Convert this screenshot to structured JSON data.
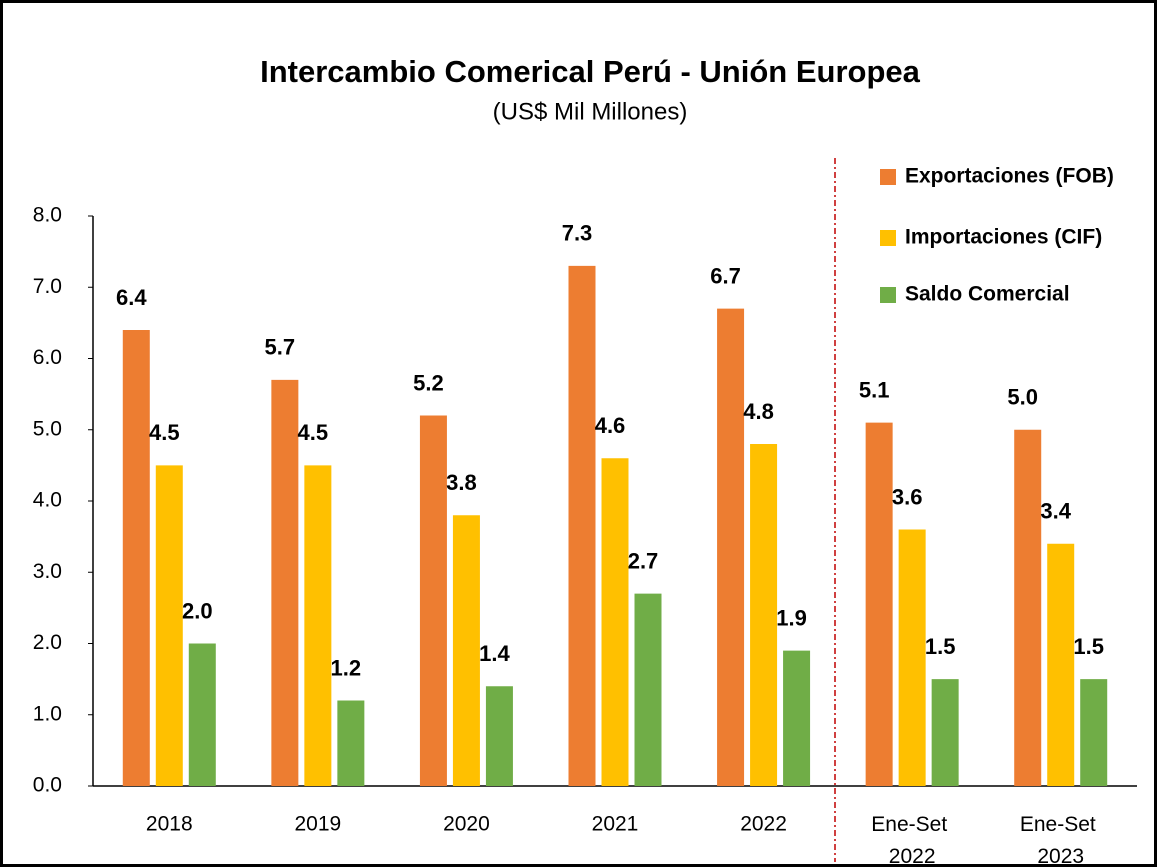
{
  "chart_data": {
    "type": "bar",
    "title": "Intercambio Comerical Perú - Unión Europea",
    "subtitle": "(US$ Mil Millones)",
    "categories": [
      "2018",
      "2019",
      "2020",
      "2021",
      "2022",
      "Ene-Set 2022",
      "Ene-Set 2023"
    ],
    "series": [
      {
        "name": "Exportaciones (FOB)",
        "color": "#ED7D31",
        "values": [
          6.4,
          5.7,
          5.2,
          7.3,
          6.7,
          5.1,
          5.0
        ],
        "value_labels": [
          "6.4",
          "5.7",
          "5.2",
          "7.3",
          "6.7",
          "5.1",
          "5.0"
        ]
      },
      {
        "name": "Importaciones (CIF)",
        "color": "#FFC000",
        "values": [
          4.5,
          4.5,
          3.8,
          4.6,
          4.8,
          3.6,
          3.4
        ],
        "value_labels": [
          "4.5",
          "4.5",
          "3.8",
          "4.6",
          "4.8",
          "3.6",
          "3.4"
        ]
      },
      {
        "name": "Saldo Comercial",
        "color": "#70AD47",
        "values": [
          2.0,
          1.2,
          1.4,
          2.7,
          1.9,
          1.5,
          1.5
        ],
        "value_labels": [
          "2.0",
          "1.2",
          "1.4",
          "2.7",
          "1.9",
          "1.5",
          "1.5"
        ]
      }
    ],
    "ylim": [
      0,
      8
    ],
    "yticks": [
      {
        "value": 0,
        "label": "0.0"
      },
      {
        "value": 1,
        "label": "1.0"
      },
      {
        "value": 2,
        "label": "2.0"
      },
      {
        "value": 3,
        "label": "3.0"
      },
      {
        "value": 4,
        "label": "4.0"
      },
      {
        "value": 5,
        "label": "5.0"
      },
      {
        "value": 6,
        "label": "6.0"
      },
      {
        "value": 7,
        "label": "7.0"
      },
      {
        "value": 8,
        "label": "8.0"
      }
    ],
    "grid": false,
    "legend": "top-right"
  }
}
